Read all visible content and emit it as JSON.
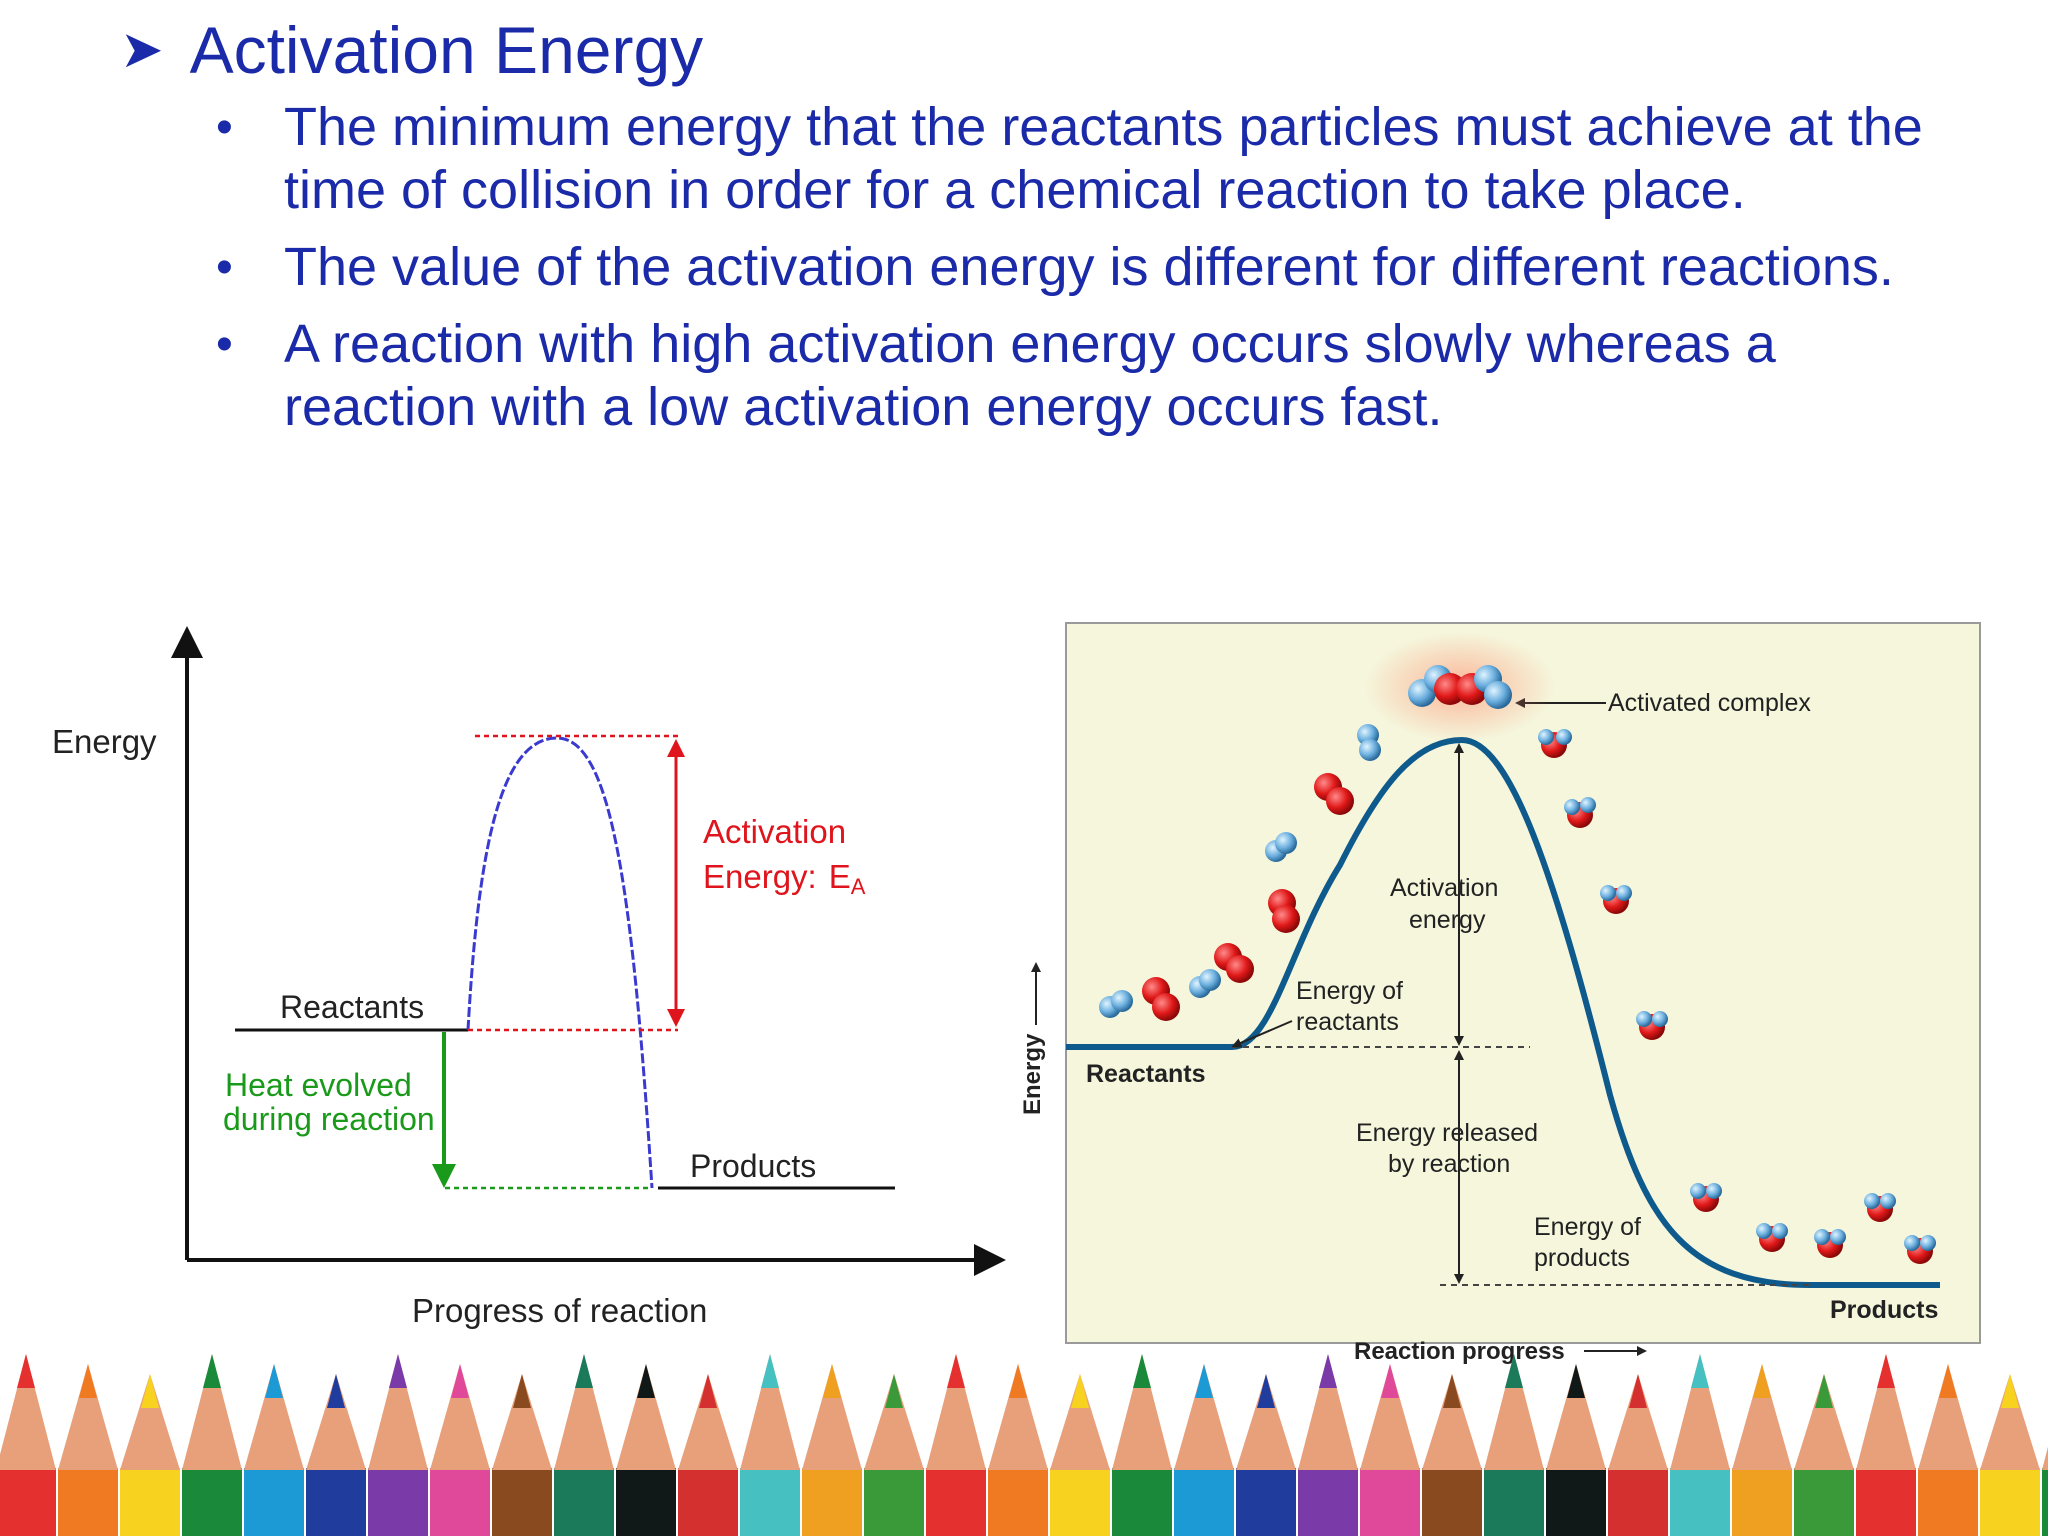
{
  "slide": {
    "heading": {
      "bullet_icon": "arrow-bullet-icon",
      "text": "Activation Energy"
    },
    "bullets": [
      "The minimum energy that the reactants particles must achieve at the time of collision in order for a chemical reaction to take place.",
      "The value of the activation energy is different for different reactions.",
      "A reaction with high activation energy occurs slowly whereas a reaction with a low activation energy occurs fast."
    ]
  },
  "diagram_left": {
    "y_label": "Energy",
    "x_label": "Progress of reaction",
    "reactants_label": "Reactants",
    "products_label": "Products",
    "activation_label_line1": "Activation",
    "activation_label_line2": "Energy:",
    "activation_symbol": "E",
    "activation_subscript": "A",
    "heat_label_line1": "Heat evolved",
    "heat_label_line2": "during reaction",
    "colors": {
      "curve": "#3a3ad0",
      "activation": "#e0141c",
      "heat": "#1a9a1a"
    }
  },
  "diagram_right": {
    "y_label": "Energy",
    "x_label": "Reaction progress",
    "activated_complex_label": "Activated complex",
    "activation_energy_line1": "Activation",
    "activation_energy_line2": "energy",
    "energy_reactants_line1": "Energy of",
    "energy_reactants_line2": "reactants",
    "reactants_label": "Reactants",
    "energy_released_line1": "Energy released",
    "energy_released_line2": "by reaction",
    "energy_products_line1": "Energy of",
    "energy_products_line2": "products",
    "products_label": "Products",
    "colors": {
      "background": "#f5f6dc",
      "curve": "#0e5a8c"
    }
  },
  "decoration": {
    "pencil_colors": [
      "#e53030",
      "#f07a22",
      "#f7d21e",
      "#1a8a3a",
      "#1b9ad6",
      "#203c9c",
      "#7a3aa8",
      "#e0489a",
      "#8a4a20",
      "#1a7a5a",
      "#101818",
      "#d43030",
      "#46c0c0",
      "#f0a020",
      "#3a9a3a"
    ]
  }
}
